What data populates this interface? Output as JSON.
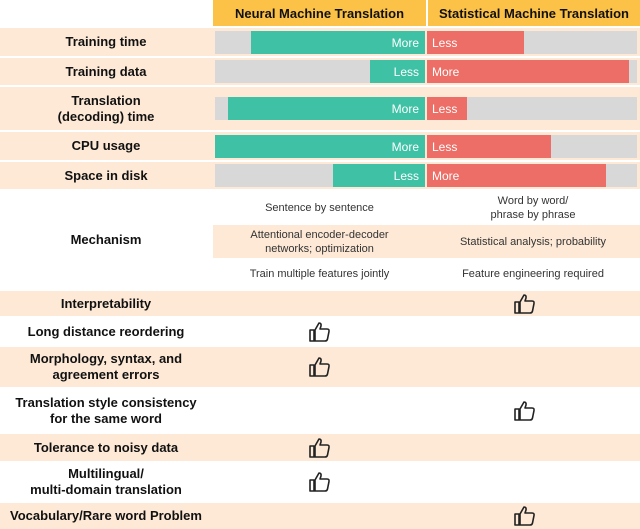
{
  "header": {
    "neural": "Neural Machine Translation",
    "statistical": "Statistical Machine Translation"
  },
  "bars": [
    {
      "label": "Training time",
      "neural": {
        "text": "More",
        "level": 0.83
      },
      "statistical": {
        "text": "Less",
        "level": 0.46
      }
    },
    {
      "label": "Training data",
      "neural": {
        "text": "Less",
        "level": 0.26
      },
      "statistical": {
        "text": "More",
        "level": 0.96
      }
    },
    {
      "label": "Translation\n(decoding) time",
      "neural": {
        "text": "More",
        "level": 0.94
      },
      "statistical": {
        "text": "Less",
        "level": 0.19
      }
    },
    {
      "label": "CPU usage",
      "neural": {
        "text": "More",
        "level": 1.0
      },
      "statistical": {
        "text": "Less",
        "level": 0.59
      }
    },
    {
      "label": "Space in disk",
      "neural": {
        "text": "Less",
        "level": 0.44
      },
      "statistical": {
        "text": "More",
        "level": 0.85
      }
    }
  ],
  "mechanism": {
    "label": "Mechanism",
    "items": [
      {
        "neural": "Sentence by sentence",
        "statistical": "Word by word/\nphrase by phrase"
      },
      {
        "neural": "Attentional encoder-decoder\nnetworks; optimization",
        "statistical": "Statistical analysis; probability"
      },
      {
        "neural": "Train multiple features jointly",
        "statistical": "Feature engineering required"
      }
    ]
  },
  "features": [
    {
      "label": "Interpretability",
      "winner": "statistical"
    },
    {
      "label": "Long distance reordering",
      "winner": "neural"
    },
    {
      "label": "Morphology, syntax, and\nagreement errors",
      "winner": "neural"
    },
    {
      "label": "Translation style consistency\nfor the same word",
      "winner": "statistical"
    },
    {
      "label": "Tolerance to noisy data",
      "winner": "neural"
    },
    {
      "label": "Multilingual/\nmulti-domain translation",
      "winner": "neural"
    },
    {
      "label": "Vocabulary/Rare word Problem",
      "winner": "statistical"
    }
  ],
  "icons": {
    "thumb": "thumbs-up-icon"
  },
  "colors": {
    "header": "#fcc247",
    "neural_bar": "#3ec1a4",
    "statistical_bar": "#ec6e66",
    "track": "#d8d8d8",
    "shade": "#fde9d6"
  }
}
